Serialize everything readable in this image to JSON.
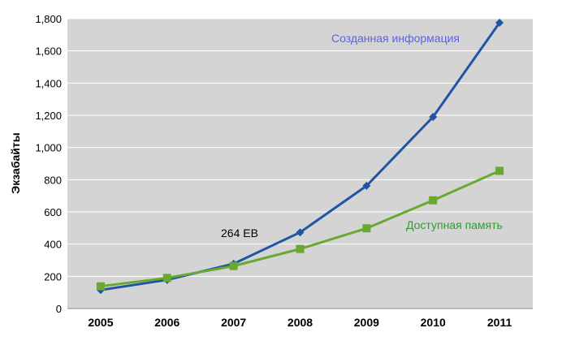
{
  "chart_data": {
    "type": "line",
    "ylabel": "Экзабайты",
    "xlabel": "",
    "categories": [
      "2005",
      "2006",
      "2007",
      "2008",
      "2009",
      "2010",
      "2011"
    ],
    "ylim": [
      0,
      1800
    ],
    "yticks": [
      0,
      200,
      400,
      600,
      800,
      1000,
      1200,
      1400,
      1600,
      1800
    ],
    "ytick_labels": [
      "0",
      "200",
      "400",
      "600",
      "800",
      "1,000",
      "1,200",
      "1,400",
      "1,600",
      "1,800"
    ],
    "grid": "horizontal",
    "series": [
      {
        "name": "Созданная информация",
        "color": "#2155a3",
        "marker": "diamond",
        "values": [
          115,
          178,
          278,
          473,
          762,
          1190,
          1775
        ]
      },
      {
        "name": "Доступная память",
        "color": "#6aa832",
        "marker": "square",
        "values": [
          138,
          190,
          264,
          370,
          498,
          672,
          855
        ]
      }
    ],
    "annotations": [
      {
        "text": "264 EB",
        "x": "2007",
        "y": 264
      }
    ],
    "colors": {
      "plot_bg": "#d4d4d4",
      "grid": "#ffffff",
      "label_created": "#5b62e8",
      "label_storage": "#27a229"
    }
  }
}
